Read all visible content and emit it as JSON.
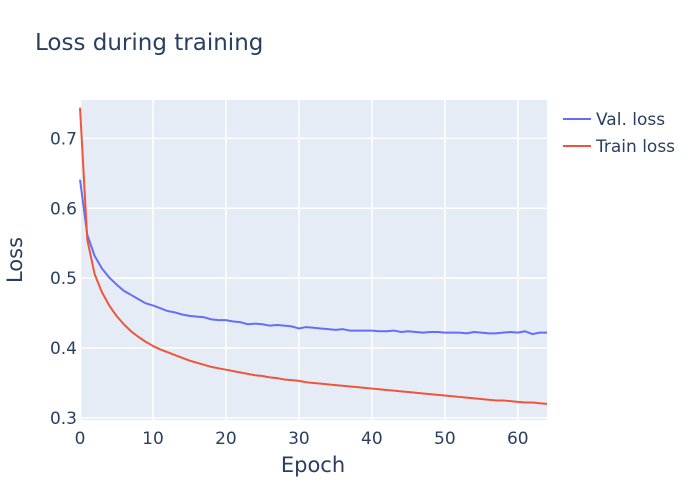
{
  "chart_data": {
    "type": "line",
    "title": "Loss during training",
    "xlabel": "Epoch",
    "ylabel": "Loss",
    "xlim": [
      0,
      64
    ],
    "ylim": [
      0.297,
      0.755
    ],
    "xticks": [
      0,
      10,
      20,
      30,
      40,
      50,
      60
    ],
    "yticks": [
      0.3,
      0.4,
      0.5,
      0.6,
      0.7
    ],
    "ytick_labels": [
      "0.3",
      "0.4",
      "0.5",
      "0.6",
      "0.7"
    ],
    "grid": true,
    "legend": "top-right outside plot",
    "plot_background": "#e5ecf6",
    "series": [
      {
        "name": "Val. loss",
        "color": "#636efa",
        "x": [
          0,
          1,
          2,
          3,
          4,
          5,
          6,
          7,
          8,
          9,
          10,
          11,
          12,
          13,
          14,
          15,
          16,
          17,
          18,
          19,
          20,
          21,
          22,
          23,
          24,
          25,
          26,
          27,
          28,
          29,
          30,
          31,
          32,
          33,
          34,
          35,
          36,
          37,
          38,
          39,
          40,
          41,
          42,
          43,
          44,
          45,
          46,
          47,
          48,
          49,
          50,
          51,
          52,
          53,
          54,
          55,
          56,
          57,
          58,
          59,
          60,
          61,
          62,
          63,
          64
        ],
        "values": [
          0.641,
          0.562,
          0.532,
          0.514,
          0.501,
          0.491,
          0.482,
          0.476,
          0.47,
          0.464,
          0.461,
          0.457,
          0.453,
          0.451,
          0.448,
          0.446,
          0.445,
          0.444,
          0.441,
          0.44,
          0.44,
          0.438,
          0.437,
          0.434,
          0.435,
          0.434,
          0.432,
          0.433,
          0.432,
          0.431,
          0.428,
          0.43,
          0.429,
          0.428,
          0.427,
          0.426,
          0.427,
          0.425,
          0.425,
          0.425,
          0.425,
          0.424,
          0.424,
          0.425,
          0.423,
          0.424,
          0.423,
          0.422,
          0.423,
          0.423,
          0.422,
          0.422,
          0.422,
          0.421,
          0.423,
          0.422,
          0.421,
          0.421,
          0.422,
          0.423,
          0.422,
          0.424,
          0.42,
          0.422,
          0.422
        ]
      },
      {
        "name": "Train loss",
        "color": "#ef553b",
        "x": [
          0,
          1,
          2,
          3,
          4,
          5,
          6,
          7,
          8,
          9,
          10,
          11,
          12,
          13,
          14,
          15,
          16,
          17,
          18,
          19,
          20,
          21,
          22,
          23,
          24,
          25,
          26,
          27,
          28,
          29,
          30,
          31,
          32,
          33,
          34,
          35,
          36,
          37,
          38,
          39,
          40,
          41,
          42,
          43,
          44,
          45,
          46,
          47,
          48,
          49,
          50,
          51,
          52,
          53,
          54,
          55,
          56,
          57,
          58,
          59,
          60,
          61,
          62,
          63,
          64
        ],
        "values": [
          0.744,
          0.555,
          0.506,
          0.48,
          0.461,
          0.446,
          0.434,
          0.424,
          0.416,
          0.409,
          0.403,
          0.398,
          0.394,
          0.39,
          0.386,
          0.382,
          0.379,
          0.376,
          0.373,
          0.371,
          0.369,
          0.367,
          0.365,
          0.363,
          0.361,
          0.36,
          0.358,
          0.357,
          0.355,
          0.354,
          0.353,
          0.351,
          0.35,
          0.349,
          0.348,
          0.347,
          0.346,
          0.345,
          0.344,
          0.343,
          0.342,
          0.341,
          0.34,
          0.339,
          0.338,
          0.337,
          0.336,
          0.335,
          0.334,
          0.333,
          0.332,
          0.331,
          0.33,
          0.329,
          0.328,
          0.327,
          0.326,
          0.325,
          0.325,
          0.324,
          0.323,
          0.322,
          0.322,
          0.321,
          0.32
        ]
      }
    ]
  }
}
